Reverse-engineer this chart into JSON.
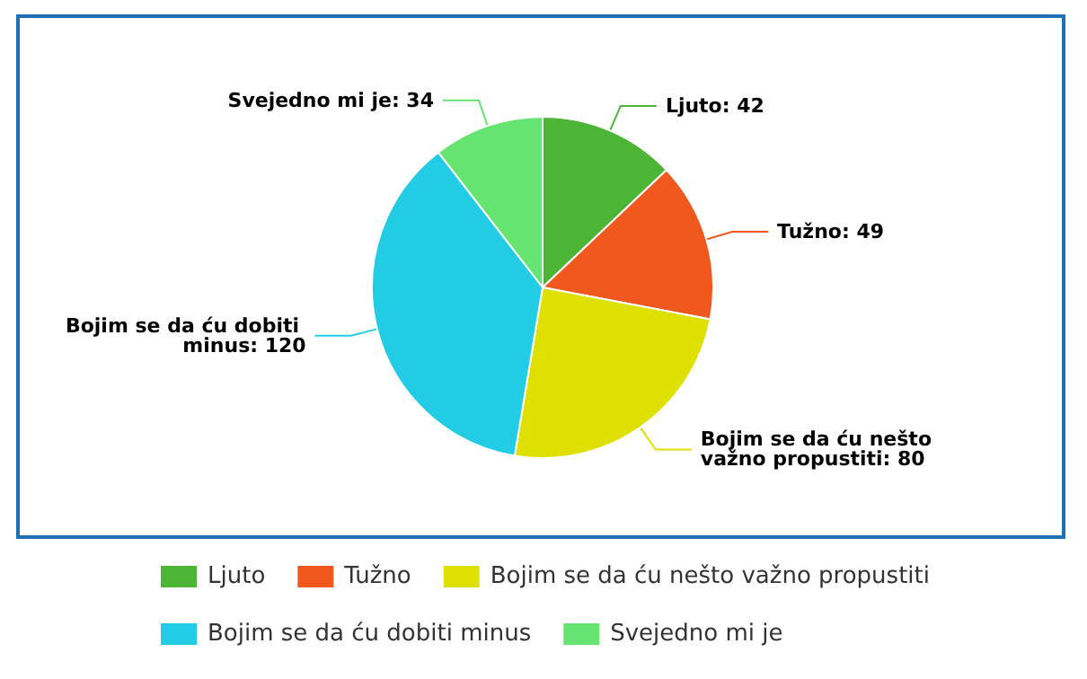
{
  "chart_data": {
    "type": "pie",
    "categories": [
      "Ljuto",
      "Tužno",
      "Bojim se da ću nešto važno propustiti",
      "Bojim se da ću dobiti minus",
      "Svejedno mi je"
    ],
    "values": [
      42,
      49,
      80,
      120,
      34
    ],
    "value_labels": [
      "Ljuto: 42",
      "Tužno: 49",
      "Bojim se da ću nešto važno propustiti: 80",
      "Bojim se da ću dobiti minus: 120",
      "Svejedno mi je: 34"
    ],
    "colors": [
      "#4db535",
      "#f0581e",
      "#dde000",
      "#22cce5",
      "#66e472"
    ],
    "legend": "bottom"
  }
}
